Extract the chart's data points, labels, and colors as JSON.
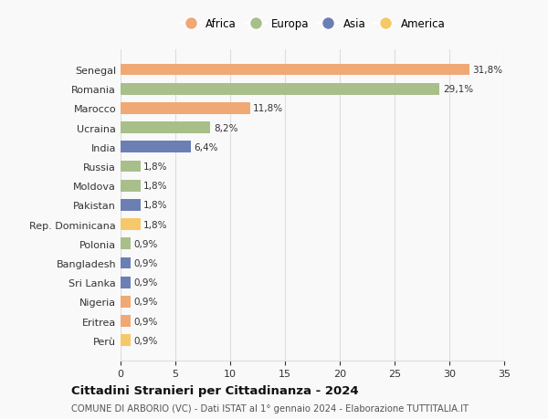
{
  "categories": [
    "Senegal",
    "Romania",
    "Marocco",
    "Ucraina",
    "India",
    "Russia",
    "Moldova",
    "Pakistan",
    "Rep. Dominicana",
    "Polonia",
    "Bangladesh",
    "Sri Lanka",
    "Nigeria",
    "Eritrea",
    "Perù"
  ],
  "values": [
    31.8,
    29.1,
    11.8,
    8.2,
    6.4,
    1.8,
    1.8,
    1.8,
    1.8,
    0.9,
    0.9,
    0.9,
    0.9,
    0.9,
    0.9
  ],
  "labels": [
    "31,8%",
    "29,1%",
    "11,8%",
    "8,2%",
    "6,4%",
    "1,8%",
    "1,8%",
    "1,8%",
    "1,8%",
    "0,9%",
    "0,9%",
    "0,9%",
    "0,9%",
    "0,9%",
    "0,9%"
  ],
  "colors": [
    "#f0a875",
    "#a8bf8a",
    "#f0a875",
    "#a8bf8a",
    "#6b7fb5",
    "#a8bf8a",
    "#a8bf8a",
    "#6b7fb5",
    "#f5c96a",
    "#a8bf8a",
    "#6b7fb5",
    "#6b7fb5",
    "#f0a875",
    "#f0a875",
    "#f5c96a"
  ],
  "legend_labels": [
    "Africa",
    "Europa",
    "Asia",
    "America"
  ],
  "legend_colors": [
    "#f0a875",
    "#a8bf8a",
    "#6b7fb5",
    "#f5c96a"
  ],
  "title": "Cittadini Stranieri per Cittadinanza - 2024",
  "subtitle": "COMUNE DI ARBORIO (VC) - Dati ISTAT al 1° gennaio 2024 - Elaborazione TUTTITALIA.IT",
  "xlim": [
    0,
    35
  ],
  "xticks": [
    0,
    5,
    10,
    15,
    20,
    25,
    30,
    35
  ],
  "background_color": "#f9f9f9",
  "grid_color": "#dddddd"
}
